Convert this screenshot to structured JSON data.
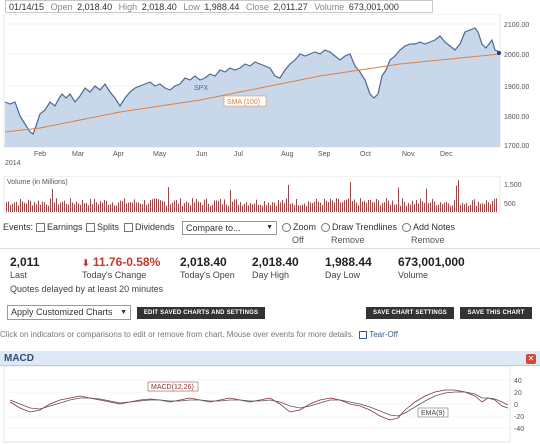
{
  "ohlc": {
    "date": "01/14/15",
    "open_label": "Open",
    "open": "2,018.40",
    "high_label": "High",
    "high": "2,018.40",
    "low_label": "Low",
    "low": "1,988.44",
    "close_label": "Close",
    "close": "2,011.27",
    "volume_label": "Volume",
    "volume": "673,001,000"
  },
  "main_chart": {
    "y_ticks": [
      "2100.00",
      "2000.00",
      "1900.00",
      "1800.00",
      "1700.00"
    ],
    "x_ticks": [
      "Feb",
      "Mar",
      "Apr",
      "May",
      "Jun",
      "Jul",
      "Aug",
      "Sep",
      "Oct",
      "Nov",
      "Dec"
    ],
    "year": "2014",
    "spx_label": "SPX",
    "sma_label": "SMA (100)",
    "price_color": "#4a6a96",
    "sma_color": "#e08040"
  },
  "volume_chart": {
    "title": "Volume (in Millions)",
    "y_ticks": [
      "1,500",
      "500"
    ]
  },
  "events": {
    "label": "Events:",
    "earnings": "Earnings",
    "splits": "Splits",
    "dividends": "Dividends",
    "compare_placeholder": "Compare to...",
    "zoom": "Zoom",
    "zoom_sub": "Off",
    "draw": "Draw Trendlines",
    "draw_sub": "Remove",
    "notes": "Add Notes",
    "notes_sub": "Remove"
  },
  "stats": {
    "last_value": "2,011",
    "last_label": "Last",
    "change_value": "11.76-0.58%",
    "change_label": "Today's Change",
    "open_value": "2,018.40",
    "open_label": "Today's Open",
    "high_value": "2,018.40",
    "high_label": "Day High",
    "low_value": "1,988.44",
    "low_label": "Day Low",
    "volume_value": "673,001,000",
    "volume_label": "Volume",
    "delay_note": "Quotes delayed by at least 20 minutes"
  },
  "toolbar": {
    "apply_select": "Apply Customized Charts",
    "edit_saved": "EDIT SAVED CHARTS AND SETTINGS",
    "save_settings": "SAVE CHART SETTINGS",
    "save_chart": "SAVE THIS CHART"
  },
  "help": {
    "text": "Click on indicators or comparisons to edit or remove from chart. Mouse over events for more details.",
    "tearoff": "Tear-Off"
  },
  "macd": {
    "title": "MACD",
    "macd_label": "MACD(12,26)",
    "ema_label": "EMA(9)",
    "y_ticks": [
      "40",
      "20",
      "0",
      "-20",
      "-40"
    ],
    "macd_color": "#8a3030",
    "ema_color": "#555555"
  }
}
